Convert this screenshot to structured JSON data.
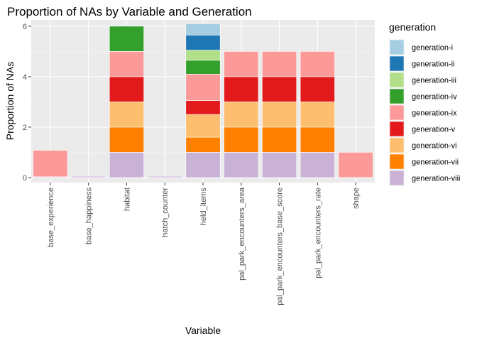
{
  "chart_data": {
    "type": "bar",
    "stacked": true,
    "title": "Proportion of NAs by Variable and Generation",
    "xlabel": "Variable",
    "ylabel": "Proportion of NAs",
    "ylim": [
      -0.2,
      6.25
    ],
    "yticks": [
      "0",
      "2",
      "4",
      "6"
    ],
    "grid": true,
    "legend_position": "right",
    "legend_title": "generation",
    "categories": [
      "base_experience",
      "base_happiness",
      "habitat",
      "hatch_counter",
      "held_items",
      "pal_park_encounters_area",
      "pal_park_encounters_base_score",
      "pal_park_encounters_rate",
      "shape"
    ],
    "series": [
      {
        "name": "generation-i",
        "color": "#a6cee3",
        "values": [
          0,
          0,
          0,
          0,
          0.45,
          0,
          0,
          0,
          0
        ]
      },
      {
        "name": "generation-ii",
        "color": "#1f78b4",
        "values": [
          0,
          0,
          0,
          0,
          0.6,
          0,
          0,
          0,
          0
        ]
      },
      {
        "name": "generation-iii",
        "color": "#b2df8a",
        "values": [
          0,
          0,
          0,
          0,
          0.4,
          0,
          0,
          0,
          0
        ]
      },
      {
        "name": "generation-iv",
        "color": "#33a02c",
        "values": [
          0,
          0,
          1.0,
          0,
          0.55,
          0,
          0,
          0,
          0
        ]
      },
      {
        "name": "generation-ix",
        "color": "#fb9a99",
        "values": [
          1.05,
          0,
          1.0,
          0,
          1.05,
          1.0,
          1.0,
          1.0,
          1.0
        ]
      },
      {
        "name": "generation-v",
        "color": "#e31a1c",
        "values": [
          0,
          0,
          1.0,
          0,
          0.55,
          1.0,
          1.0,
          1.0,
          0
        ]
      },
      {
        "name": "generation-vi",
        "color": "#fdbf6f",
        "values": [
          0,
          0,
          1.0,
          0,
          0.9,
          1.0,
          1.0,
          1.0,
          0
        ]
      },
      {
        "name": "generation-vii",
        "color": "#ff7f00",
        "values": [
          0,
          0,
          1.0,
          0,
          0.6,
          1.0,
          1.0,
          1.0,
          0
        ]
      },
      {
        "name": "generation-viii",
        "color": "#cab2d6",
        "values": [
          0.03,
          0.05,
          1.0,
          0.05,
          1.0,
          1.0,
          1.0,
          1.0,
          0
        ]
      }
    ]
  }
}
